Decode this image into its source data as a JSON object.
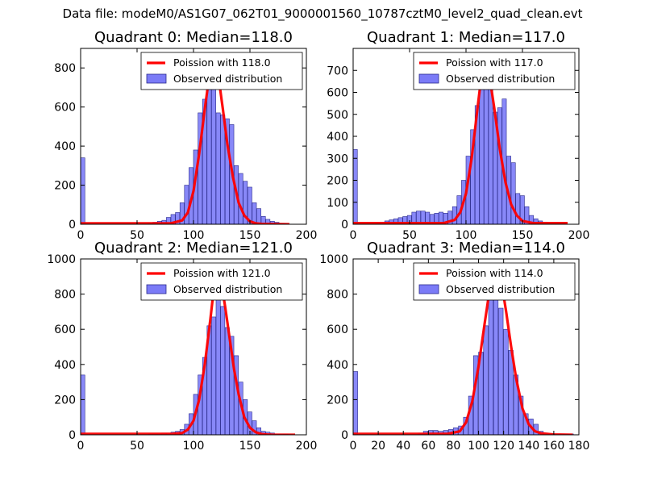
{
  "figure": {
    "suptitle": "Data file: modeM0/AS1G07_062T01_9000001560_10787cztM0_level2_quad_clean.evt"
  },
  "colors": {
    "hist_fill": "#7b7bf7",
    "hist_edge": "#2a2a8c",
    "poisson_line": "#ff0000"
  },
  "chart_data": [
    {
      "type": "bar",
      "title": "Quadrant 0: Median=118.0",
      "median": 118.0,
      "xlim": [
        0,
        200
      ],
      "ylim": [
        0,
        900
      ],
      "xticks": [
        "0",
        "50",
        "100",
        "150",
        "200"
      ],
      "yticks": [
        "0",
        "200",
        "400",
        "600",
        "800"
      ],
      "legend": [
        "Poission with 118.0",
        "Observed distribution"
      ],
      "bin_width": 3.75,
      "bins_x": [
        0,
        60,
        64,
        68,
        72,
        76,
        80,
        84,
        88,
        92,
        96,
        100,
        104,
        108,
        112,
        116,
        120,
        124,
        128,
        132,
        136,
        140,
        144,
        148,
        152,
        156,
        160,
        164,
        168,
        172,
        176,
        180
      ],
      "counts": [
        340,
        5,
        10,
        15,
        20,
        35,
        50,
        60,
        110,
        200,
        290,
        380,
        570,
        640,
        770,
        740,
        570,
        560,
        540,
        510,
        300,
        260,
        220,
        190,
        110,
        80,
        40,
        25,
        15,
        10,
        5,
        5
      ],
      "poisson_x": [
        0,
        80,
        90,
        95,
        100,
        105,
        110,
        114,
        118,
        122,
        126,
        130,
        135,
        140,
        145,
        150,
        155,
        160,
        185
      ],
      "poisson_y": [
        5,
        5,
        20,
        60,
        170,
        360,
        590,
        760,
        860,
        760,
        590,
        410,
        240,
        110,
        45,
        15,
        5,
        2,
        0
      ]
    },
    {
      "type": "bar",
      "title": "Quadrant 1: Median=117.0",
      "median": 117.0,
      "xlim": [
        0,
        200
      ],
      "ylim": [
        0,
        800
      ],
      "xticks": [
        "0",
        "50",
        "100",
        "150",
        "200"
      ],
      "yticks": [
        "0",
        "100",
        "200",
        "300",
        "400",
        "500",
        "600",
        "700"
      ],
      "legend": [
        "Poission with 117.0",
        "Observed distribution"
      ],
      "bin_width": 3.75,
      "bins_x": [
        0,
        20,
        24,
        28,
        32,
        36,
        40,
        44,
        48,
        52,
        56,
        60,
        64,
        68,
        72,
        76,
        80,
        84,
        88,
        92,
        96,
        100,
        104,
        108,
        112,
        116,
        120,
        124,
        128,
        132,
        136,
        140,
        144,
        148,
        152,
        156,
        160,
        164,
        168,
        172,
        176,
        180,
        184
      ],
      "counts": [
        340,
        5,
        10,
        15,
        20,
        25,
        30,
        35,
        40,
        55,
        60,
        60,
        55,
        45,
        50,
        55,
        50,
        60,
        80,
        130,
        200,
        310,
        430,
        540,
        660,
        700,
        760,
        510,
        530,
        570,
        310,
        280,
        140,
        130,
        80,
        40,
        25,
        15,
        10,
        5,
        5,
        5,
        5
      ],
      "poisson_x": [
        0,
        60,
        80,
        90,
        95,
        100,
        105,
        110,
        114,
        117,
        120,
        125,
        130,
        135,
        140,
        145,
        150,
        155,
        160,
        165,
        190
      ],
      "poisson_y": [
        5,
        5,
        5,
        20,
        55,
        140,
        300,
        520,
        690,
        760,
        700,
        530,
        340,
        190,
        90,
        40,
        15,
        10,
        5,
        5,
        5
      ]
    },
    {
      "type": "bar",
      "title": "Quadrant 2: Median=121.0",
      "median": 121.0,
      "xlim": [
        0,
        200
      ],
      "ylim": [
        0,
        1000
      ],
      "xticks": [
        "0",
        "50",
        "100",
        "150",
        "200"
      ],
      "yticks": [
        "0",
        "200",
        "400",
        "600",
        "800",
        "1000"
      ],
      "legend": [
        "Poission with 121.0",
        "Observed distribution"
      ],
      "bin_width": 3.75,
      "bins_x": [
        0,
        60,
        64,
        68,
        72,
        76,
        80,
        84,
        88,
        92,
        96,
        100,
        104,
        108,
        112,
        116,
        120,
        124,
        128,
        132,
        136,
        140,
        144,
        148,
        152,
        156,
        160,
        164,
        168,
        172,
        176,
        180
      ],
      "counts": [
        340,
        5,
        5,
        5,
        10,
        10,
        15,
        20,
        30,
        60,
        120,
        230,
        340,
        440,
        620,
        670,
        940,
        730,
        610,
        560,
        450,
        300,
        200,
        130,
        80,
        40,
        20,
        15,
        10,
        5,
        5,
        5
      ],
      "poisson_x": [
        0,
        80,
        90,
        95,
        100,
        105,
        110,
        115,
        118,
        121,
        124,
        128,
        132,
        136,
        140,
        145,
        150,
        155,
        160,
        165,
        170,
        190
      ],
      "poisson_y": [
        5,
        5,
        10,
        30,
        80,
        200,
        400,
        660,
        830,
        950,
        890,
        730,
        550,
        370,
        230,
        100,
        40,
        15,
        5,
        2,
        0,
        0
      ]
    },
    {
      "type": "bar",
      "title": "Quadrant 3: Median=114.0",
      "median": 114.0,
      "xlim": [
        0,
        180
      ],
      "ylim": [
        0,
        1000
      ],
      "xticks": [
        "0",
        "20",
        "40",
        "60",
        "80",
        "100",
        "120",
        "140",
        "160",
        "180"
      ],
      "yticks": [
        "0",
        "200",
        "400",
        "600",
        "800",
        "1000"
      ],
      "legend": [
        "Poission with 114.0",
        "Observed distribution"
      ],
      "bin_width": 3.6,
      "bins_x": [
        0,
        52,
        56,
        60,
        64,
        68,
        72,
        76,
        80,
        84,
        88,
        92,
        96,
        100,
        104,
        108,
        112,
        116,
        120,
        124,
        128,
        132,
        136,
        140,
        144,
        148,
        152,
        156,
        160,
        164,
        168,
        172
      ],
      "counts": [
        360,
        10,
        20,
        25,
        25,
        20,
        25,
        30,
        40,
        50,
        100,
        220,
        450,
        470,
        620,
        810,
        850,
        720,
        600,
        480,
        340,
        220,
        120,
        90,
        60,
        20,
        10,
        5,
        5,
        5,
        5,
        5
      ],
      "poisson_x": [
        0,
        75,
        85,
        90,
        95,
        100,
        105,
        110,
        114,
        118,
        122,
        126,
        130,
        135,
        140,
        145,
        150,
        160,
        175
      ],
      "poisson_y": [
        5,
        5,
        20,
        70,
        190,
        390,
        640,
        880,
        960,
        880,
        700,
        500,
        320,
        150,
        60,
        20,
        8,
        2,
        0
      ]
    }
  ]
}
